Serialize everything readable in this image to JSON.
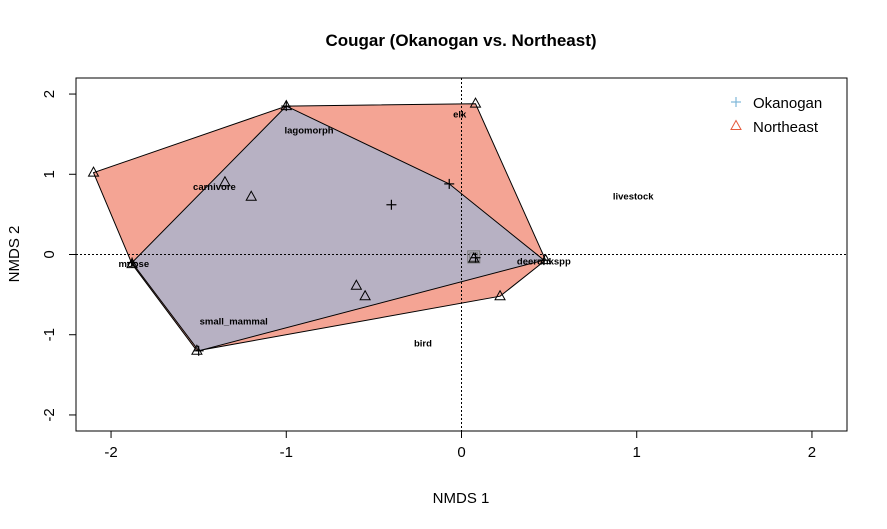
{
  "chart_data": {
    "type": "scatter",
    "title": "Cougar (Okanogan vs. Northeast)",
    "xlabel": "NMDS 1",
    "ylabel": "NMDS 2",
    "xlim": [
      -2.2,
      2.2
    ],
    "ylim": [
      -2.2,
      2.2
    ],
    "xticks": [
      -2,
      -1,
      0,
      1,
      2
    ],
    "yticks": [
      -2,
      -1,
      0,
      1,
      2
    ],
    "reference_lines": {
      "x": 0,
      "y": 0
    },
    "legend_position": "top-right",
    "series": [
      {
        "name": "Okanogan",
        "marker": "plus",
        "color": "#7EB6D9",
        "hull_fill": "#9FB6D6",
        "points": [
          {
            "x": -1.0,
            "y": 1.85
          },
          {
            "x": -0.07,
            "y": 0.88
          },
          {
            "x": -0.4,
            "y": 0.62
          },
          {
            "x": 0.47,
            "y": -0.07
          },
          {
            "x": 0.08,
            "y": -0.04
          },
          {
            "x": -1.88,
            "y": -0.1
          },
          {
            "x": -1.5,
            "y": -1.2
          }
        ]
      },
      {
        "name": "Northeast",
        "marker": "triangle",
        "color": "#E55A3C",
        "hull_fill": "#F4A494",
        "points": [
          {
            "x": -2.1,
            "y": 1.02
          },
          {
            "x": -1.0,
            "y": 1.85
          },
          {
            "x": 0.08,
            "y": 1.88
          },
          {
            "x": -1.35,
            "y": 0.9
          },
          {
            "x": -1.2,
            "y": 0.72
          },
          {
            "x": 0.48,
            "y": -0.07
          },
          {
            "x": 0.07,
            "y": -0.05
          },
          {
            "x": 0.22,
            "y": -0.52
          },
          {
            "x": -0.6,
            "y": -0.39
          },
          {
            "x": -0.55,
            "y": -0.52
          },
          {
            "x": -1.88,
            "y": -0.12
          },
          {
            "x": -1.51,
            "y": -1.2
          }
        ]
      }
    ],
    "species_labels": [
      {
        "label": "elk",
        "x": -0.01,
        "y": 1.75
      },
      {
        "label": "lagomorph",
        "x": -0.87,
        "y": 1.55
      },
      {
        "label": "carnivore",
        "x": -1.41,
        "y": 0.85
      },
      {
        "label": "livestock",
        "x": 0.98,
        "y": 0.73
      },
      {
        "label": "deerunkspp",
        "x": 0.47,
        "y": -0.08
      },
      {
        "label": "moose",
        "x": -1.87,
        "y": -0.11
      },
      {
        "label": "small_mammal",
        "x": -1.3,
        "y": -0.83
      },
      {
        "label": "bird",
        "x": -0.22,
        "y": -1.1
      }
    ],
    "centroid_box": {
      "x": 0.07,
      "y": -0.03
    }
  }
}
